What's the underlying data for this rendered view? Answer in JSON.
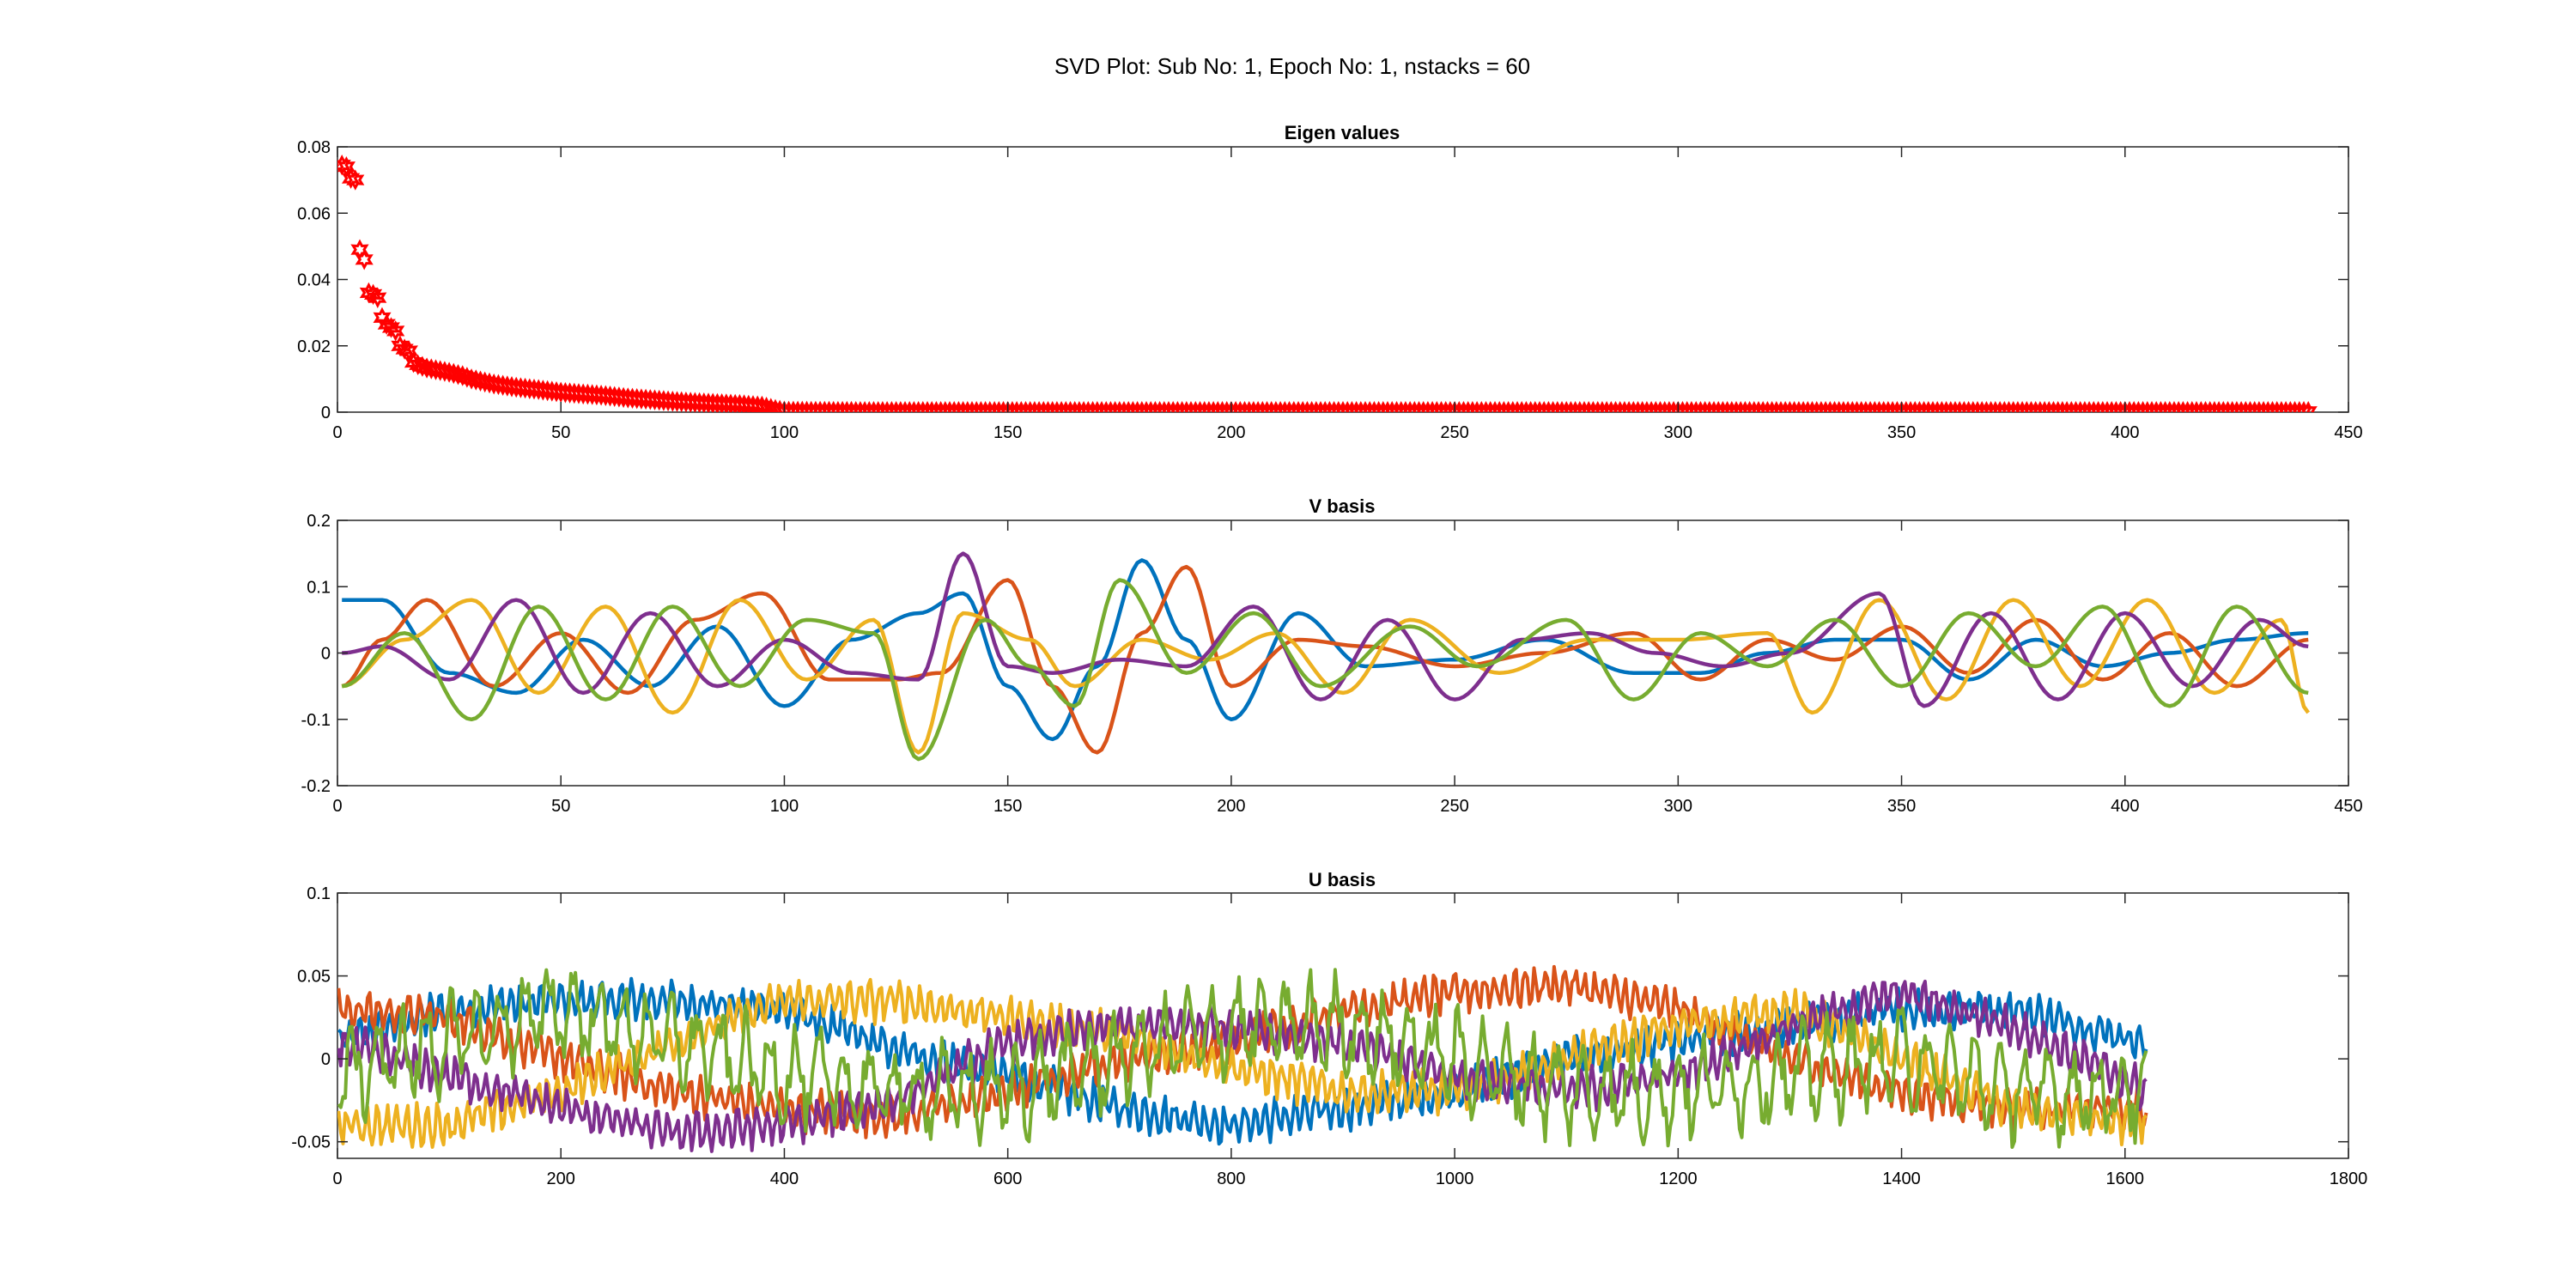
{
  "figure": {
    "title": "SVD Plot: Sub No: 1, Epoch No: 1, nstacks = 60"
  },
  "chart_data": [
    {
      "type": "scatter",
      "title": "Eigen values",
      "xlabel": "",
      "ylabel": "",
      "xlim": [
        0,
        450
      ],
      "ylim": [
        0,
        0.08
      ],
      "xticks": [
        0,
        50,
        100,
        150,
        200,
        250,
        300,
        350,
        400,
        450
      ],
      "yticks": [
        0,
        0.02,
        0.04,
        0.06,
        0.08
      ],
      "marker": "hexagram",
      "marker_color": "#ff0000",
      "n_points": 441,
      "description_of_values": "monotonically decreasing singular values",
      "series": [
        {
          "x": [
            1,
            2,
            3,
            4,
            5,
            6,
            7,
            8,
            9,
            10,
            11,
            12,
            13,
            14,
            15,
            16,
            17,
            18,
            19,
            20,
            22,
            25,
            28,
            30,
            35,
            40,
            45,
            50,
            55,
            60,
            65,
            70,
            75,
            80,
            85,
            90,
            95,
            98,
            100,
            120,
            150,
            200,
            250,
            300,
            350,
            400,
            441
          ],
          "y": [
            0.0745,
            0.074,
            0.0705,
            0.07,
            0.049,
            0.046,
            0.036,
            0.0355,
            0.0345,
            0.0285,
            0.0265,
            0.0255,
            0.0245,
            0.02,
            0.019,
            0.0185,
            0.015,
            0.0143,
            0.0138,
            0.0133,
            0.0128,
            0.012,
            0.011,
            0.01,
            0.0085,
            0.0075,
            0.0068,
            0.006,
            0.0055,
            0.005,
            0.0043,
            0.0038,
            0.0033,
            0.0029,
            0.0026,
            0.0023,
            0.0018,
            0.0008,
            0.0003,
            0.0002,
            0.0002,
            0.0002,
            0.0002,
            0.0002,
            0.0002,
            0.0002,
            0.0002
          ]
        }
      ]
    },
    {
      "type": "line",
      "title": "V basis",
      "xlabel": "",
      "ylabel": "",
      "xlim": [
        0,
        450
      ],
      "ylim": [
        -0.2,
        0.2
      ],
      "xticks": [
        0,
        50,
        100,
        150,
        200,
        250,
        300,
        350,
        400,
        450
      ],
      "yticks": [
        -0.2,
        -0.1,
        0,
        0.1,
        0.2
      ],
      "x_range": [
        1,
        441
      ],
      "series": [
        {
          "color": "#0072bd",
          "x": [
            1,
            10,
            25,
            40,
            55,
            70,
            85,
            100,
            115,
            130,
            140,
            150,
            160,
            170,
            180,
            190,
            200,
            215,
            230,
            250,
            270,
            290,
            305,
            320,
            335,
            350,
            365,
            380,
            395,
            410,
            425,
            441
          ],
          "y": [
            0.08,
            0.08,
            -0.03,
            -0.06,
            0.02,
            -0.05,
            0.04,
            -0.08,
            0.02,
            0.06,
            0.09,
            -0.05,
            -0.13,
            -0.02,
            0.14,
            0.02,
            -0.1,
            0.06,
            -0.02,
            -0.01,
            0.02,
            -0.03,
            -0.03,
            0.0,
            0.02,
            0.02,
            -0.04,
            0.02,
            -0.02,
            0.0,
            0.02,
            0.03
          ]
        },
        {
          "color": "#d95319",
          "x": [
            1,
            10,
            20,
            35,
            50,
            65,
            80,
            95,
            110,
            125,
            135,
            150,
            160,
            170,
            180,
            190,
            200,
            215,
            230,
            250,
            270,
            290,
            305,
            320,
            335,
            350,
            365,
            380,
            395,
            410,
            425,
            441
          ],
          "y": [
            -0.05,
            0.02,
            0.08,
            -0.05,
            0.03,
            -0.06,
            0.05,
            0.09,
            -0.04,
            -0.04,
            -0.03,
            0.11,
            -0.05,
            -0.15,
            0.03,
            0.13,
            -0.05,
            0.02,
            0.01,
            -0.02,
            0.0,
            0.03,
            -0.04,
            0.02,
            -0.01,
            0.04,
            -0.03,
            0.05,
            -0.04,
            0.03,
            -0.05,
            0.02
          ]
        },
        {
          "color": "#edb120",
          "x": [
            1,
            15,
            30,
            45,
            60,
            75,
            90,
            105,
            120,
            130,
            140,
            155,
            165,
            180,
            195,
            210,
            225,
            240,
            260,
            280,
            300,
            320,
            330,
            345,
            360,
            375,
            390,
            405,
            420,
            435,
            441
          ],
          "y": [
            -0.05,
            0.02,
            0.08,
            -0.06,
            0.07,
            -0.09,
            0.08,
            -0.04,
            0.05,
            -0.15,
            0.06,
            0.02,
            -0.05,
            0.02,
            -0.01,
            0.03,
            -0.06,
            0.05,
            -0.03,
            0.02,
            0.02,
            0.03,
            -0.09,
            0.08,
            -0.07,
            0.08,
            -0.05,
            0.08,
            -0.06,
            0.05,
            -0.09
          ]
        },
        {
          "color": "#7e2f8e",
          "x": [
            1,
            10,
            25,
            40,
            55,
            70,
            85,
            100,
            115,
            130,
            140,
            150,
            160,
            175,
            190,
            205,
            220,
            235,
            250,
            265,
            280,
            295,
            310,
            325,
            345,
            355,
            370,
            385,
            400,
            415,
            430,
            441
          ],
          "y": [
            0.0,
            0.01,
            -0.04,
            0.08,
            -0.06,
            0.06,
            -0.05,
            0.02,
            -0.03,
            -0.04,
            0.15,
            -0.02,
            -0.03,
            -0.01,
            -0.02,
            0.07,
            -0.07,
            0.05,
            -0.07,
            0.02,
            0.03,
            0.0,
            -0.02,
            0.0,
            0.09,
            -0.08,
            0.06,
            -0.07,
            0.06,
            -0.05,
            0.05,
            0.01
          ]
        },
        {
          "color": "#77ac30",
          "x": [
            1,
            15,
            30,
            45,
            60,
            75,
            90,
            105,
            120,
            130,
            145,
            155,
            165,
            175,
            190,
            205,
            220,
            240,
            255,
            275,
            290,
            305,
            320,
            335,
            350,
            365,
            380,
            395,
            410,
            425,
            441
          ],
          "y": [
            -0.05,
            0.03,
            -0.1,
            0.07,
            -0.07,
            0.07,
            -0.05,
            0.05,
            0.03,
            -0.16,
            0.05,
            -0.02,
            -0.08,
            0.11,
            -0.03,
            0.06,
            -0.05,
            0.04,
            -0.02,
            0.05,
            -0.07,
            0.03,
            -0.02,
            0.05,
            -0.05,
            0.06,
            -0.02,
            0.07,
            -0.08,
            0.07,
            -0.06
          ]
        }
      ]
    },
    {
      "type": "line",
      "title": "U basis",
      "xlabel": "",
      "ylabel": "",
      "xlim": [
        0,
        1800
      ],
      "ylim": [
        -0.06,
        0.1
      ],
      "xticks": [
        0,
        200,
        400,
        600,
        800,
        1000,
        1200,
        1400,
        1600,
        1800
      ],
      "yticks": [
        -0.05,
        0,
        0.05,
        0.1
      ],
      "x_range": [
        1,
        1620
      ],
      "series": [
        {
          "color": "#0072bd",
          "x": [
            1,
            100,
            200,
            300,
            400,
            500,
            600,
            700,
            800,
            900,
            1000,
            1100,
            1200,
            1300,
            1400,
            1500,
            1620
          ],
          "y": [
            0.01,
            0.03,
            0.035,
            0.035,
            0.03,
            0.005,
            -0.01,
            -0.03,
            -0.04,
            -0.03,
            -0.02,
            0.0,
            0.01,
            0.02,
            0.03,
            0.03,
            0.01
          ]
        },
        {
          "color": "#d95319",
          "x": [
            1,
            100,
            200,
            300,
            400,
            500,
            600,
            700,
            800,
            900,
            1000,
            1100,
            1200,
            1300,
            1400,
            1500,
            1620
          ],
          "y": [
            0.03,
            0.025,
            0.0,
            -0.02,
            -0.03,
            -0.035,
            -0.02,
            0.0,
            0.01,
            0.03,
            0.04,
            0.045,
            0.03,
            0.0,
            -0.02,
            -0.03,
            -0.03
          ]
        },
        {
          "color": "#edb120",
          "x": [
            1,
            100,
            200,
            300,
            400,
            500,
            600,
            700,
            800,
            900,
            1000,
            1100,
            1200,
            1300,
            1400,
            1500,
            1620
          ],
          "y": [
            -0.04,
            -0.04,
            -0.02,
            0.01,
            0.035,
            0.035,
            0.025,
            0.015,
            -0.005,
            -0.02,
            -0.02,
            0.0,
            0.02,
            0.03,
            0.0,
            -0.03,
            -0.04
          ]
        },
        {
          "color": "#7e2f8e",
          "x": [
            1,
            100,
            200,
            300,
            400,
            500,
            600,
            700,
            800,
            900,
            1000,
            1100,
            1200,
            1300,
            1400,
            1500,
            1620
          ],
          "y": [
            0.01,
            -0.01,
            -0.03,
            -0.045,
            -0.04,
            -0.025,
            0.01,
            0.02,
            0.02,
            0.01,
            -0.01,
            -0.02,
            -0.01,
            0.02,
            0.04,
            0.02,
            -0.02
          ]
        },
        {
          "color": "#77ac30",
          "x": [
            1,
            100,
            200,
            300,
            400,
            500,
            600,
            700,
            800,
            900,
            1000,
            1100,
            1200,
            1300,
            1400,
            1500,
            1620
          ],
          "y": [
            -0.01,
            0.01,
            0.03,
            0.01,
            -0.01,
            -0.02,
            -0.02,
            0.0,
            0.02,
            0.02,
            0.0,
            -0.02,
            -0.02,
            -0.01,
            0.0,
            -0.02,
            -0.02
          ]
        }
      ]
    }
  ]
}
